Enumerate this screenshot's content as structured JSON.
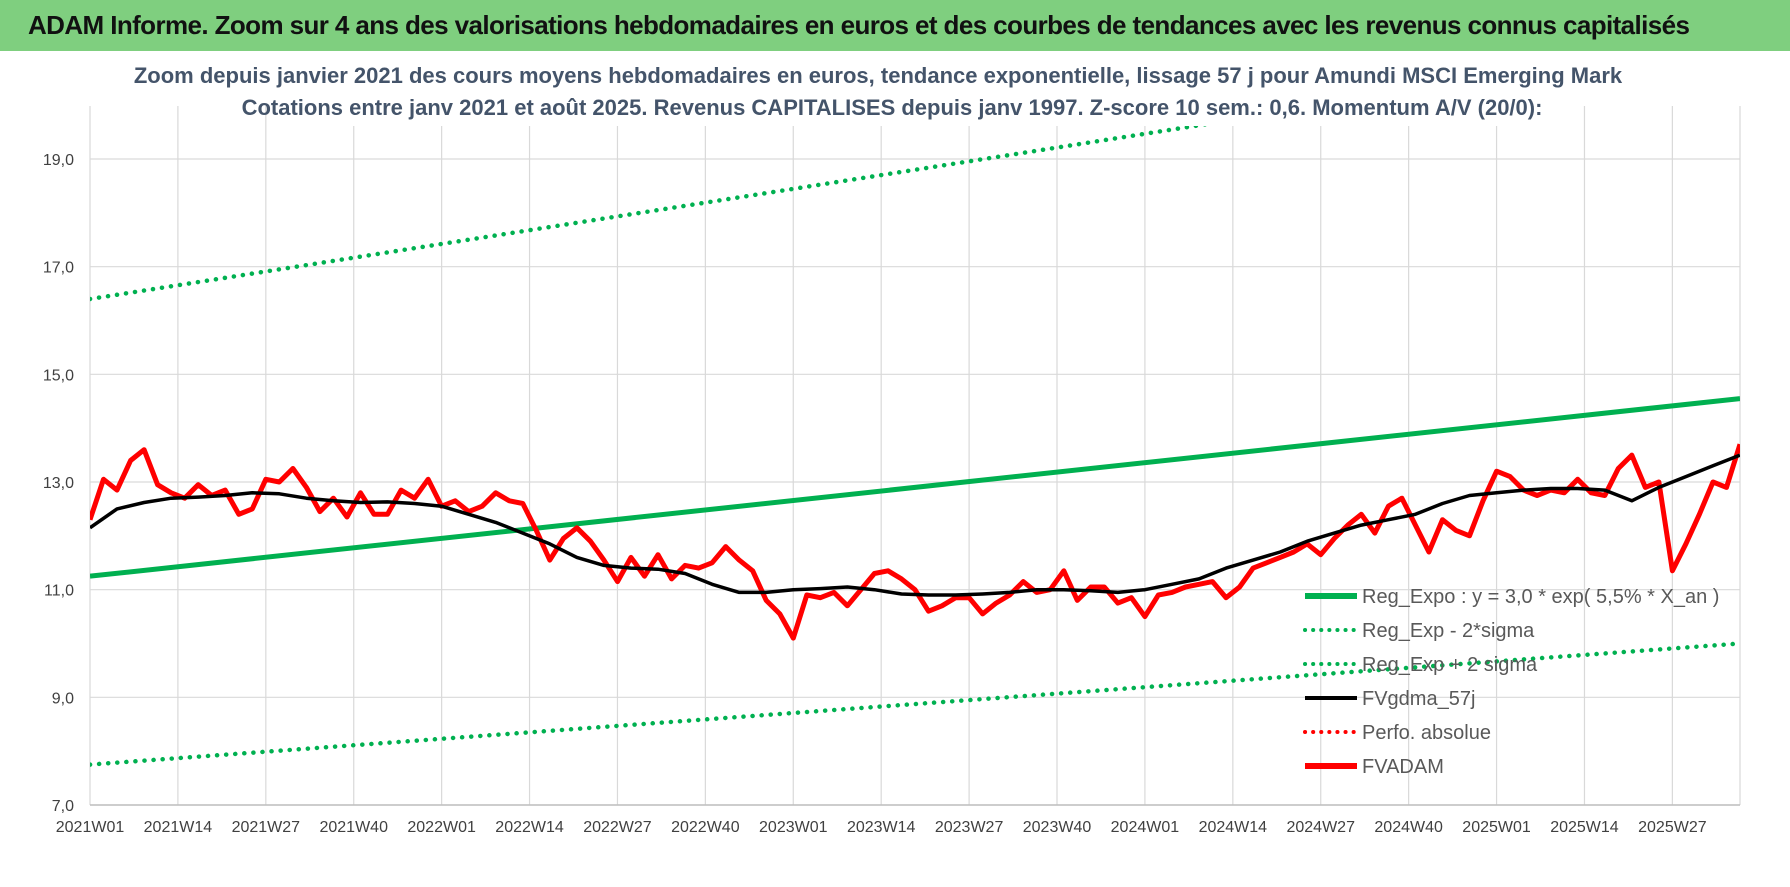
{
  "banner": {
    "title": "ADAM Informe. Zoom sur 4 ans des valorisations hebdomadaires en euros et des courbes de tendances avec les revenus connus capitalisés"
  },
  "colors": {
    "banner_bg": "#7fcf7f",
    "trend_green": "#00b050",
    "price_red": "#ff0000",
    "smooth_black": "#000000",
    "grid": "#d9d9d9",
    "title_text": "#44546a"
  },
  "chart_data": {
    "type": "line",
    "title_line1": "Zoom depuis janvier 2021 des cours moyens hebdomadaires en euros, tendance exponentielle, lissage 57 j pour Amundi MSCI Emerging Mark",
    "title_line2": "Cotations entre janv 2021 et août 2025. Revenus CAPITALISES depuis janv 1997. Z-score 10 sem.: 0,6. Momentum A/V (20/0):",
    "xlabel": "",
    "ylabel": "",
    "ylim": [
      7.0,
      19.0
    ],
    "yticks": [
      "7,0",
      "9,0",
      "11,0",
      "13,0",
      "15,0",
      "17,0",
      "19,0"
    ],
    "x_tick_labels": [
      "2021W01",
      "2021W14",
      "2021W27",
      "2021W40",
      "2022W01",
      "2022W14",
      "2022W27",
      "2022W40",
      "2023W01",
      "2023W14",
      "2023W27",
      "2023W40",
      "2024W01",
      "2024W14",
      "2024W27",
      "2024W40",
      "2025W01",
      "2025W14",
      "2025W27"
    ],
    "x_range_weeks": [
      0,
      244
    ],
    "grid": true,
    "legend_position": "bottom-right",
    "legend": [
      {
        "label": "Reg_Expo : y = 3,0 * exp( 5,5% *  X_an )",
        "style": "solid-thick",
        "color": "#00b050"
      },
      {
        "label": "Reg_Exp - 2*sigma",
        "style": "dotted",
        "color": "#00b050"
      },
      {
        "label": "Reg_Exp + 2 sigma",
        "style": "dotted",
        "color": "#00b050"
      },
      {
        "label": "FVgdma_57j",
        "style": "solid",
        "color": "#000000"
      },
      {
        "label": "Perfo. absolue",
        "style": "dotted",
        "color": "#ff0000"
      },
      {
        "label": "FVADAM",
        "style": "solid-thick",
        "color": "#ff0000"
      }
    ],
    "series": [
      {
        "name": "Reg_Expo : y = 3,0 * exp( 5,5% *  X_an )",
        "x": [
          0,
          244
        ],
        "y": [
          11.25,
          14.55
        ]
      },
      {
        "name": "Reg_Exp - 2*sigma",
        "x": [
          0,
          244
        ],
        "y": [
          7.75,
          10.0
        ]
      },
      {
        "name": "Reg_Exp + 2 sigma",
        "x": [
          0,
          244
        ],
        "y": [
          16.4,
          21.2
        ]
      },
      {
        "name": "FVgdma_57j",
        "x": [
          0,
          4,
          8,
          12,
          16,
          20,
          24,
          28,
          32,
          36,
          40,
          44,
          48,
          52,
          56,
          60,
          64,
          68,
          72,
          76,
          80,
          84,
          88,
          92,
          96,
          100,
          104,
          108,
          112,
          116,
          120,
          124,
          128,
          132,
          136,
          140,
          144,
          148,
          152,
          156,
          160,
          164,
          168,
          172,
          176,
          180,
          184,
          188,
          192,
          196,
          200,
          204,
          208,
          212,
          216,
          220,
          224,
          228,
          232,
          236,
          240,
          244
        ],
        "y": [
          12.15,
          12.5,
          12.62,
          12.7,
          12.72,
          12.75,
          12.8,
          12.78,
          12.7,
          12.65,
          12.62,
          12.63,
          12.6,
          12.55,
          12.4,
          12.25,
          12.05,
          11.85,
          11.6,
          11.45,
          11.4,
          11.38,
          11.3,
          11.1,
          10.95,
          10.95,
          11.0,
          11.02,
          11.05,
          11.0,
          10.92,
          10.9,
          10.9,
          10.92,
          10.95,
          11.0,
          11.0,
          10.98,
          10.95,
          11.0,
          11.1,
          11.2,
          11.4,
          11.55,
          11.7,
          11.9,
          12.05,
          12.2,
          12.3,
          12.4,
          12.6,
          12.75,
          12.8,
          12.85,
          12.88,
          12.88,
          12.85,
          12.65,
          12.9,
          13.1,
          13.3,
          13.5
        ]
      },
      {
        "name": "FVADAM",
        "x": [
          0,
          2,
          4,
          6,
          8,
          10,
          12,
          14,
          16,
          18,
          20,
          22,
          24,
          26,
          28,
          30,
          32,
          34,
          36,
          38,
          40,
          42,
          44,
          46,
          48,
          50,
          52,
          54,
          56,
          58,
          60,
          62,
          64,
          66,
          68,
          70,
          72,
          74,
          76,
          78,
          80,
          82,
          84,
          86,
          88,
          90,
          92,
          94,
          96,
          98,
          100,
          102,
          104,
          106,
          108,
          110,
          112,
          114,
          116,
          118,
          120,
          122,
          124,
          126,
          128,
          130,
          132,
          134,
          136,
          138,
          140,
          142,
          144,
          146,
          148,
          150,
          152,
          154,
          156,
          158,
          160,
          162,
          164,
          166,
          168,
          170,
          172,
          174,
          176,
          178,
          180,
          182,
          184,
          186,
          188,
          190,
          192,
          194,
          196,
          198,
          200,
          202,
          204,
          206,
          208,
          210,
          212,
          214,
          216,
          218,
          220,
          222,
          224,
          226,
          228,
          230,
          232,
          234,
          236,
          238,
          240,
          242,
          244
        ],
        "y": [
          12.3,
          13.05,
          12.85,
          13.4,
          13.6,
          12.95,
          12.8,
          12.7,
          12.95,
          12.75,
          12.85,
          12.4,
          12.5,
          13.05,
          13.0,
          13.25,
          12.9,
          12.45,
          12.7,
          12.35,
          12.8,
          12.4,
          12.4,
          12.85,
          12.7,
          13.05,
          12.55,
          12.65,
          12.45,
          12.55,
          12.8,
          12.65,
          12.6,
          12.1,
          11.55,
          11.95,
          12.15,
          11.9,
          11.55,
          11.15,
          11.6,
          11.25,
          11.65,
          11.2,
          11.45,
          11.4,
          11.5,
          11.8,
          11.55,
          11.35,
          10.8,
          10.55,
          10.1,
          10.9,
          10.85,
          10.95,
          10.7,
          11.0,
          11.3,
          11.35,
          11.2,
          11.0,
          10.6,
          10.7,
          10.85,
          10.85,
          10.55,
          10.75,
          10.9,
          11.15,
          10.95,
          11.0,
          11.35,
          10.8,
          11.05,
          11.05,
          10.75,
          10.85,
          10.5,
          10.9,
          10.95,
          11.05,
          11.1,
          11.15,
          10.85,
          11.05,
          11.4,
          11.5,
          11.6,
          11.7,
          11.85,
          11.65,
          11.95,
          12.2,
          12.4,
          12.05,
          12.55,
          12.7,
          12.2,
          11.7,
          12.3,
          12.1,
          12.0,
          12.65,
          13.2,
          13.1,
          12.85,
          12.75,
          12.85,
          12.8,
          13.05,
          12.8,
          12.75,
          13.25,
          13.5,
          12.9,
          13.0,
          11.35,
          11.85,
          12.4,
          13.0,
          12.9,
          13.7
        ]
      }
    ]
  }
}
